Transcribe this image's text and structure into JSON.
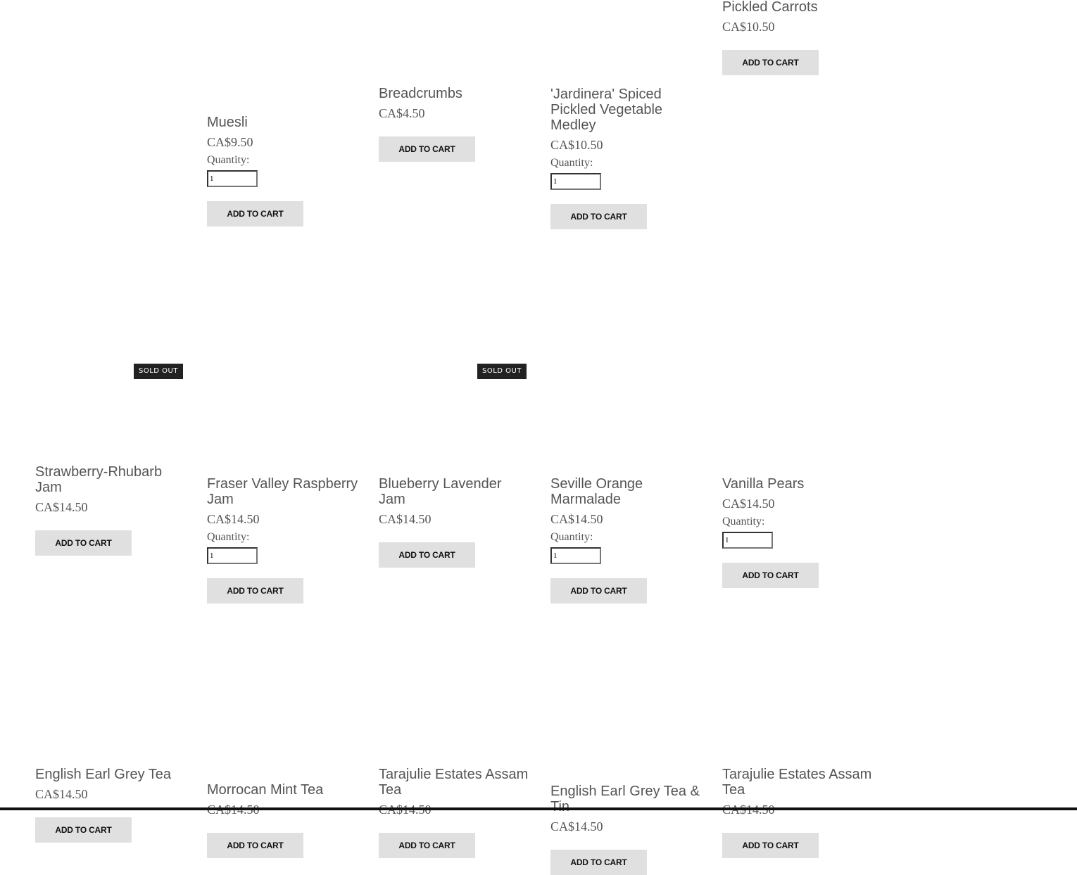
{
  "labels": {
    "quantity": "Quantity:",
    "add_to_cart": "ADD TO CART",
    "sold_out": "SOLD OUT"
  },
  "products": [
    {
      "name": "Muesli",
      "price": "CA$9.50",
      "quantity": "1"
    },
    {
      "name": "Breadcrumbs",
      "price": "CA$4.50"
    },
    {
      "name": "'Jardinera' Spiced Pickled Vegetable Medley",
      "price": "CA$10.50",
      "quantity": "1"
    },
    {
      "name": "Pickled Carrots",
      "price": "CA$10.50"
    },
    {
      "name": "Strawberry-Rhubarb Jam",
      "price": "CA$14.50",
      "sold_out": true
    },
    {
      "name": "Fraser Valley Raspberry Jam",
      "price": "CA$14.50",
      "quantity": "1"
    },
    {
      "name": "Blueberry Lavender Jam",
      "price": "CA$14.50",
      "sold_out": true
    },
    {
      "name": "Seville Orange Marmalade",
      "price": "CA$14.50",
      "quantity": "1"
    },
    {
      "name": "Vanilla Pears",
      "price": "CA$14.50",
      "quantity": "1"
    },
    {
      "name": "English Earl Grey Tea",
      "price": "CA$14.50"
    },
    {
      "name": "Morrocan Mint Tea",
      "price": "CA$14.50"
    },
    {
      "name": "Tarajulie Estates Assam Tea",
      "price": "CA$14.50"
    },
    {
      "name": "English Earl Grey Tea & Tin",
      "price": "CA$14.50"
    },
    {
      "name": "Tarajulie Estates Assam Tea",
      "price": "CA$14.50"
    }
  ]
}
